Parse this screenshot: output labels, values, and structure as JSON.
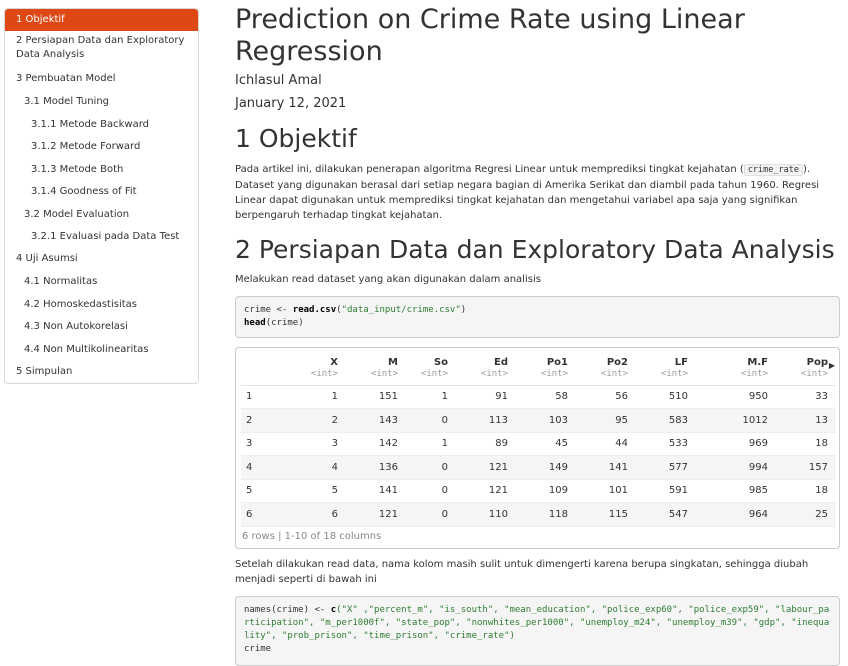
{
  "toc": [
    {
      "label": "1 Objektif",
      "level": 1,
      "active": true
    },
    {
      "label": "2 Persiapan Data dan Exploratory Data Analysis",
      "level": 1
    },
    {
      "label": "3 Pembuatan Model",
      "level": 1
    },
    {
      "label": "3.1 Model Tuning",
      "level": 2
    },
    {
      "label": "3.1.1 Metode Backward",
      "level": 3
    },
    {
      "label": "3.1.2 Metode Forward",
      "level": 3
    },
    {
      "label": "3.1.3 Metode Both",
      "level": 3
    },
    {
      "label": "3.1.4 Goodness of Fit",
      "level": 3
    },
    {
      "label": "3.2 Model Evaluation",
      "level": 2
    },
    {
      "label": "3.2.1 Evaluasi pada Data Test",
      "level": 3
    },
    {
      "label": "4 Uji Asumsi",
      "level": 1
    },
    {
      "label": "4.1 Normalitas",
      "level": 2
    },
    {
      "label": "4.2 Homoskedastisitas",
      "level": 2
    },
    {
      "label": "4.3 Non Autokorelasi",
      "level": 2
    },
    {
      "label": "4.4 Non Multikolinearitas",
      "level": 2
    },
    {
      "label": "5 Simpulan",
      "level": 1
    }
  ],
  "header": {
    "title": "Prediction on Crime Rate using Linear Regression",
    "author": "Ichlasul Amal",
    "date": "January 12, 2021"
  },
  "section1": {
    "heading": "1 Objektif",
    "text_before": "Pada artikel ini, dilakukan penerapan algoritma Regresi Linear untuk memprediksi tingkat kejahatan (",
    "inline_code": "crime_rate",
    "text_after": "). Dataset yang digunakan berasal dari setiap negara bagian di Amerika Serikat dan diambil pada tahun 1960. Regresi Linear dapat digunakan untuk memprediksi tingkat kejahatan dan mengetahui variabel apa saja yang signifikan berpengaruh terhadap tingkat kejahatan."
  },
  "section2": {
    "heading": "2 Persiapan Data dan Exploratory Data Analysis",
    "intro": "Melakukan read dataset yang akan digunakan dalam analisis",
    "code1": {
      "line1_var": "crime <- ",
      "line1_fn": "read.csv",
      "line1_open": "(",
      "line1_str": "\"data_input/crime.csv\"",
      "line1_close": ")",
      "line2_fn": "head",
      "line2_rest": "(crime)"
    },
    "table": {
      "columns": [
        {
          "name": "",
          "type": ""
        },
        {
          "name": "X",
          "type": "<int>"
        },
        {
          "name": "M",
          "type": "<int>"
        },
        {
          "name": "So",
          "type": "<int>"
        },
        {
          "name": "Ed",
          "type": "<int>"
        },
        {
          "name": "Po1",
          "type": "<int>"
        },
        {
          "name": "Po2",
          "type": "<int>"
        },
        {
          "name": "LF",
          "type": "<int>"
        },
        {
          "name": "M.F",
          "type": "<int>"
        },
        {
          "name": "Pop",
          "type": "<int>"
        }
      ],
      "rows": [
        [
          "1",
          "1",
          "151",
          "1",
          "91",
          "58",
          "56",
          "510",
          "950",
          "33"
        ],
        [
          "2",
          "2",
          "143",
          "0",
          "113",
          "103",
          "95",
          "583",
          "1012",
          "13"
        ],
        [
          "3",
          "3",
          "142",
          "1",
          "89",
          "45",
          "44",
          "533",
          "969",
          "18"
        ],
        [
          "4",
          "4",
          "136",
          "0",
          "121",
          "149",
          "141",
          "577",
          "994",
          "157"
        ],
        [
          "5",
          "5",
          "141",
          "0",
          "121",
          "109",
          "101",
          "591",
          "985",
          "18"
        ],
        [
          "6",
          "6",
          "121",
          "0",
          "110",
          "118",
          "115",
          "547",
          "964",
          "25"
        ]
      ],
      "footer": "6 rows | 1-10 of 18 columns",
      "scroll_arrow": "▶"
    },
    "after_text": "Setelah dilakukan read data, nama kolom masih sulit untuk dimengerti karena berupa singkatan, sehingga diubah menjadi seperti di bawah ini",
    "code2": {
      "start": "names(crime) <- ",
      "fn": "c",
      "args": "(\"X\" ,\"percent_m\", \"is_south\", \"mean_education\", \"police_exp60\", \"police_exp59\", \"labour_participation\", \"m_per1000f\", \"state_pop\", \"nonwhites_per1000\", \"unemploy_m24\", \"unemploy_m39\", \"gdp\", \"inequality\", \"prob_prison\", \"time_prison\", \"crime_rate\")",
      "line2": "crime"
    }
  }
}
